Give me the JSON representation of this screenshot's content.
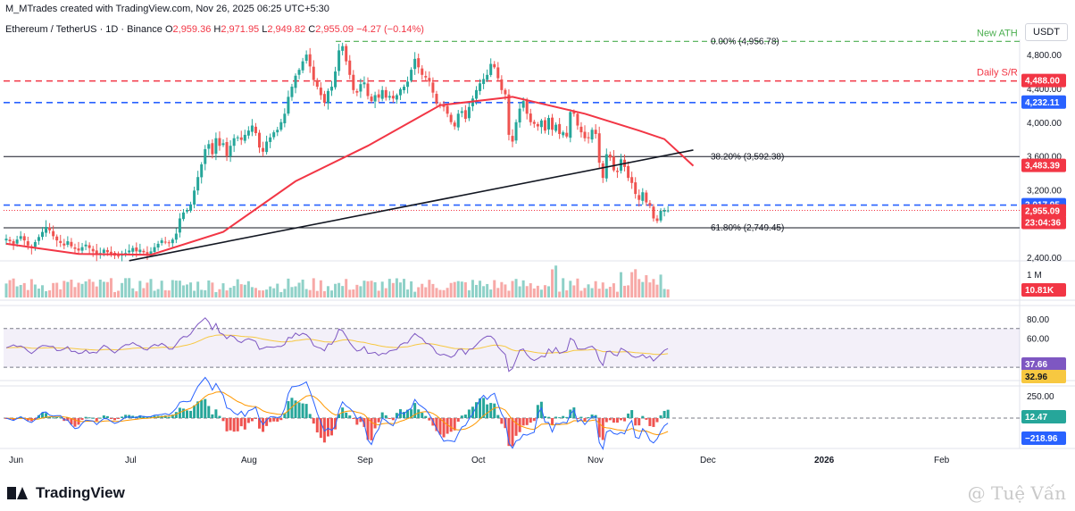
{
  "header": {
    "credit": "M_MTrades created with TradingView.com, Nov 26, 2025 06:25 UTC+5:30"
  },
  "legend": {
    "symbol": "Ethereum / TetherUS · 1D · Binance",
    "o_label": "O",
    "o": "2,959.36",
    "h_label": "H",
    "h": "2,971.95",
    "l_label": "L",
    "l": "2,949.82",
    "c_label": "C",
    "c": "2,955.09",
    "change": "−4.27 (−0.14%)"
  },
  "quote_currency": "USDT",
  "footer": {
    "brand": "TradingView",
    "watermark": "@ Tuệ Vấn"
  },
  "colors": {
    "up": "#26a69a",
    "down": "#ef5350",
    "ma": "#f23645",
    "blue": "#2962ff",
    "green": "#4caf50",
    "rsi": "#7e57c2",
    "rsi_ma": "#f7c841"
  },
  "chart_data": [
    {
      "type": "candlestick",
      "x_ticks": [
        "Jun",
        "Jul",
        "Aug",
        "Sep",
        "Oct",
        "Nov",
        "Dec",
        "2026",
        "Feb"
      ],
      "y_ticks": [
        "4,800.00",
        "4,400.00",
        "4,000.00",
        "3,600.00",
        "3,200.00",
        "2,400.00"
      ],
      "ylim": [
        2400,
        5000
      ],
      "series": [
        {
          "name": "ETHUSDT",
          "close": [
            2620,
            2590,
            2560,
            2610,
            2650,
            2600,
            2540,
            2510,
            2580,
            2640,
            2700,
            2760,
            2720,
            2650,
            2600,
            2570,
            2540,
            2590,
            2530,
            2500,
            2480,
            2520,
            2550,
            2510,
            2470,
            2430,
            2450,
            2490,
            2460,
            2440,
            2420,
            2410,
            2430,
            2450,
            2480,
            2510,
            2470,
            2490,
            2460,
            2440,
            2470,
            2520,
            2560,
            2600,
            2580,
            2570,
            2610,
            2680,
            2860,
            2930,
            2960,
            3020,
            3190,
            3350,
            3500,
            3680,
            3740,
            3620,
            3810,
            3720,
            3750,
            3600,
            3720,
            3810,
            3820,
            3790,
            3850,
            3900,
            3960,
            3870,
            3700,
            3650,
            3770,
            3820,
            3880,
            3910,
            4000,
            4100,
            4300,
            4420,
            4550,
            4620,
            4720,
            4800,
            4660,
            4500,
            4420,
            4320,
            4230,
            4370,
            4420,
            4600,
            4850,
            4900,
            4720,
            4560,
            4380,
            4350,
            4450,
            4470,
            4310,
            4250,
            4320,
            4290,
            4380,
            4290,
            4310,
            4280,
            4320,
            4390,
            4420,
            4480,
            4620,
            4750,
            4650,
            4560,
            4530,
            4480,
            4350,
            4220,
            4200,
            4180,
            4100,
            4000,
            3950,
            4100,
            4130,
            4040,
            4180,
            4280,
            4380,
            4460,
            4510,
            4560,
            4690,
            4650,
            4520,
            4380,
            4330,
            3850,
            3770,
            4000,
            4160,
            4250,
            4100,
            4000,
            3980,
            3950,
            4020,
            3900,
            4050,
            3910,
            3970,
            3860,
            3880,
            3830,
            4120,
            4100,
            3960,
            3880,
            3810,
            3810,
            3910,
            3860,
            3520,
            3340,
            3620,
            3580,
            3430,
            3410,
            3560,
            3470,
            3340,
            3280,
            3150,
            3080,
            3170,
            3050,
            3010,
            2860,
            2830,
            2950,
            2960,
            2955
          ]
        }
      ],
      "annotations": [
        {
          "text": "0.00% (4,956.78)",
          "y": 4956.78
        },
        {
          "text": "38.20% (3,592.38)",
          "y": 3592.38
        },
        {
          "text": "61.80% (2,749.45)",
          "y": 2749.45
        },
        {
          "text": "New ATH",
          "y": 4956.78
        },
        {
          "text": "Daily S/R",
          "y": 4488.0
        }
      ],
      "price_tags": [
        {
          "text": "4,488.00",
          "y": 4488.0,
          "color": "#f23645"
        },
        {
          "text": "4,232.11",
          "y": 4232.11,
          "color": "#2962ff"
        },
        {
          "text": "3,483.39",
          "y": 3483.39,
          "color": "#f23645"
        },
        {
          "text": "3,017.95",
          "y": 3017.95,
          "color": "#2962ff"
        },
        {
          "text": "2,955.09",
          "y": 2955.09,
          "color": "#f23645"
        },
        {
          "text": "23:04:36",
          "y": 2860,
          "color": "#f23645"
        }
      ],
      "ma_reference_points": [
        [
          0,
          2560
        ],
        [
          20,
          2440
        ],
        [
          40,
          2430
        ],
        [
          60,
          2700
        ],
        [
          80,
          3300
        ],
        [
          100,
          3720
        ],
        [
          120,
          4200
        ],
        [
          140,
          4300
        ],
        [
          160,
          4100
        ],
        [
          175,
          3900
        ],
        [
          182,
          3800
        ],
        [
          190,
          3483
        ]
      ],
      "trendline": {
        "from": [
          34,
          2360
        ],
        "to": [
          190,
          3670
        ]
      }
    },
    {
      "type": "bar",
      "name": "Volume",
      "y_ticks": [
        "1 M"
      ],
      "last_value": "10.81K"
    },
    {
      "type": "line",
      "name": "RSI",
      "y_ticks": [
        "80.00",
        "60.00"
      ],
      "ylim": [
        20,
        90
      ],
      "levels": [
        70,
        30
      ],
      "last_values": [
        "37.66",
        "32.96"
      ]
    },
    {
      "type": "line",
      "name": "MACD",
      "y_ticks": [
        "250.00"
      ],
      "last_values": [
        "12.47",
        "−218.96"
      ]
    }
  ]
}
